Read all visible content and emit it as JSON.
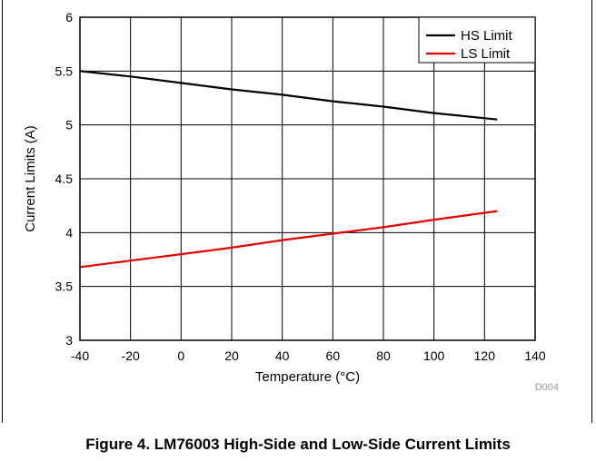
{
  "figure": {
    "caption": "Figure 4. LM76003 High-Side and Low-Side Current Limits",
    "id_tag": "D004"
  },
  "chart_data": {
    "type": "line",
    "xlabel": "Temperature (°C)",
    "ylabel": "Current Limits (A)",
    "xlim": [
      -40,
      140
    ],
    "ylim": [
      3,
      6
    ],
    "xticks": [
      -40,
      -20,
      0,
      20,
      40,
      60,
      80,
      100,
      120,
      140
    ],
    "yticks": [
      3,
      3.5,
      4,
      4.5,
      5,
      5.5,
      6
    ],
    "xtick_labels": [
      "-40",
      "-20",
      "0",
      "20",
      "40",
      "60",
      "80",
      "100",
      "120",
      "140"
    ],
    "ytick_labels": [
      "3",
      "3.5",
      "4",
      "4.5",
      "5",
      "5.5",
      "6"
    ],
    "grid": true,
    "legend_position": "top-right",
    "series": [
      {
        "name": "HS Limit",
        "color": "#000000",
        "x": [
          -40,
          -20,
          0,
          20,
          40,
          60,
          80,
          100,
          125
        ],
        "y": [
          5.5,
          5.45,
          5.39,
          5.33,
          5.28,
          5.22,
          5.17,
          5.11,
          5.05
        ]
      },
      {
        "name": "LS Limit",
        "color": "#e00000",
        "x": [
          -40,
          -20,
          0,
          20,
          40,
          60,
          80,
          100,
          125
        ],
        "y": [
          3.68,
          3.74,
          3.8,
          3.86,
          3.93,
          3.99,
          4.05,
          4.12,
          4.2
        ]
      }
    ]
  }
}
